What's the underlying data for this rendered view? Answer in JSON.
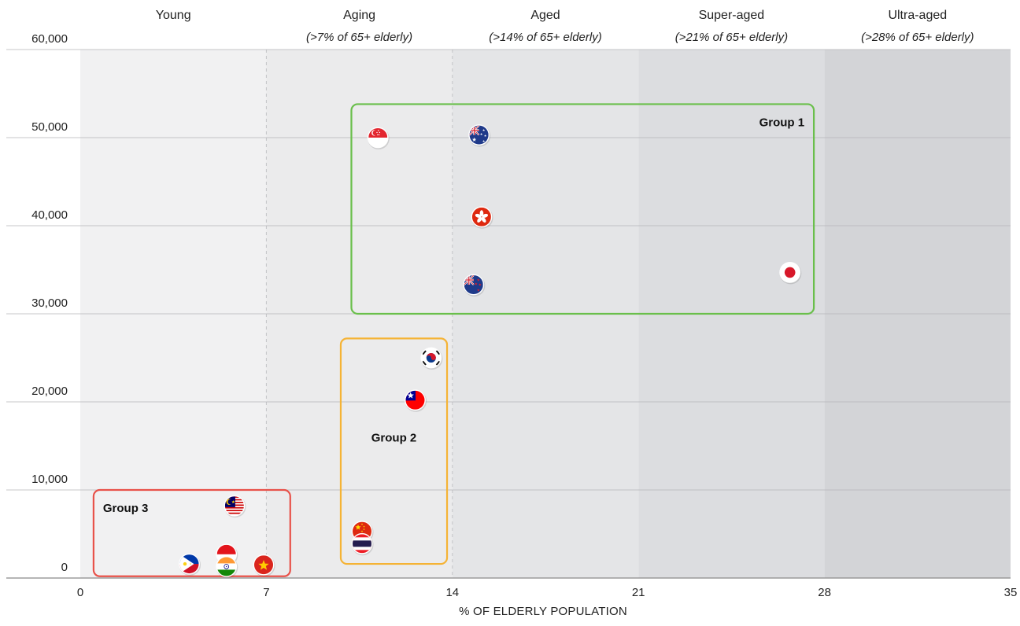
{
  "chart_data": {
    "type": "scatter",
    "xlabel": "% OF ELDERLY POPULATION",
    "ylabel": "",
    "xlim": [
      0,
      35
    ],
    "ylim": [
      0,
      60000
    ],
    "x_ticks": [
      "0",
      "7",
      "14",
      "21",
      "28",
      "35"
    ],
    "y_ticks": [
      "0",
      "10,000",
      "20,000",
      "30,000",
      "40,000",
      "50,000",
      "60,000"
    ],
    "grid": true,
    "bands": [
      {
        "x0": 0,
        "x1": 7,
        "title": "Young",
        "subtitle": "",
        "color": "#f1f1f2"
      },
      {
        "x0": 7,
        "x1": 14,
        "title": "Aging",
        "subtitle": "(>7% of 65+ elderly)",
        "color": "#ebebec"
      },
      {
        "x0": 14,
        "x1": 21,
        "title": "Aged",
        "subtitle": "(>14% of 65+ elderly)",
        "color": "#e4e5e7"
      },
      {
        "x0": 21,
        "x1": 28,
        "title": "Super-aged",
        "subtitle": "(>21% of 65+ elderly)",
        "color": "#dcdde0"
      },
      {
        "x0": 28,
        "x1": 35,
        "title": "Ultra-aged",
        "subtitle": "(>28% of 65+ elderly)",
        "color": "#d3d4d7"
      }
    ],
    "groups": [
      {
        "label": "Group 1",
        "x0": 10.2,
        "x1": 27.6,
        "y0": 30000,
        "y1": 53800,
        "color": "#6abf4b",
        "label_pos": "top-right"
      },
      {
        "label": "Group 2",
        "x0": 9.8,
        "x1": 13.8,
        "y0": 1600,
        "y1": 27200,
        "color": "#f5b335",
        "label_pos": "middle"
      },
      {
        "label": "Group 3",
        "x0": 0.5,
        "x1": 7.9,
        "y0": 200,
        "y1": 10000,
        "color": "#e8524a",
        "label_pos": "top-left"
      }
    ],
    "points": [
      {
        "x": 11.2,
        "y": 50000,
        "icon": "singapore-flag-icon"
      },
      {
        "x": 15.0,
        "y": 50300,
        "icon": "australia-flag-icon"
      },
      {
        "x": 15.1,
        "y": 41000,
        "icon": "hong-kong-flag-icon"
      },
      {
        "x": 14.8,
        "y": 33300,
        "icon": "new-zealand-flag-icon"
      },
      {
        "x": 26.7,
        "y": 34700,
        "icon": "japan-flag-icon"
      },
      {
        "x": 13.2,
        "y": 25000,
        "icon": "south-korea-flag-icon"
      },
      {
        "x": 12.6,
        "y": 20200,
        "icon": "taiwan-flag-icon"
      },
      {
        "x": 10.6,
        "y": 5300,
        "icon": "china-flag-icon"
      },
      {
        "x": 10.6,
        "y": 3900,
        "icon": "thailand-flag-icon"
      },
      {
        "x": 5.8,
        "y": 8200,
        "icon": "malaysia-flag-icon"
      },
      {
        "x": 5.5,
        "y": 2700,
        "icon": "indonesia-flag-icon"
      },
      {
        "x": 4.1,
        "y": 1600,
        "icon": "philippines-flag-icon"
      },
      {
        "x": 5.5,
        "y": 1300,
        "icon": "india-flag-icon"
      },
      {
        "x": 6.9,
        "y": 1500,
        "icon": "vietnam-flag-icon"
      }
    ]
  }
}
